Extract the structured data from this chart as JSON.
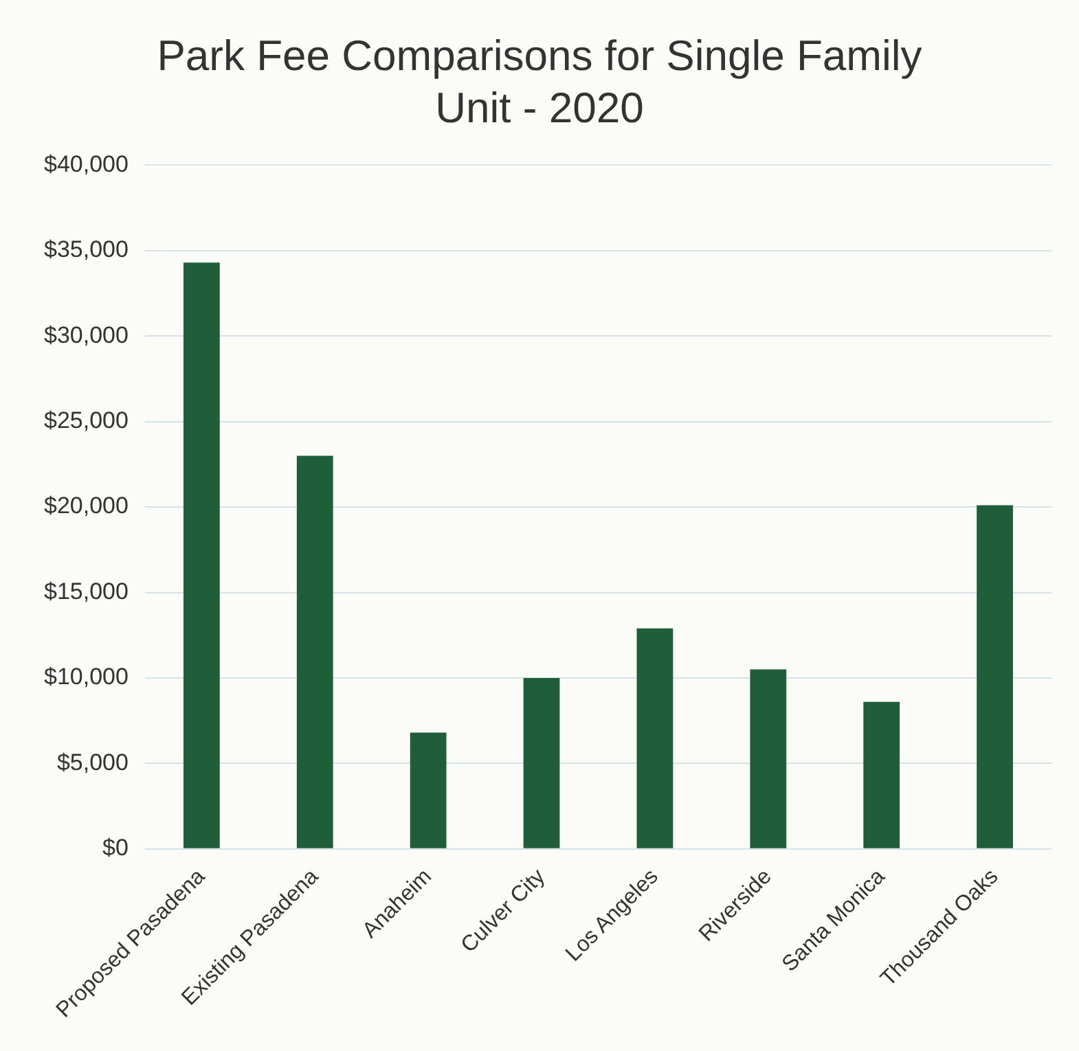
{
  "chart_data": {
    "type": "bar",
    "title": "Park Fee Comparisons for Single Family Unit - 2020",
    "categories": [
      "Proposed Pasadena",
      "Existing Pasadena",
      "Anaheim",
      "Culver City",
      "Los Angeles",
      "Riverside",
      "Santa Monica",
      "Thousand Oaks"
    ],
    "values": [
      34300,
      23000,
      6800,
      10000,
      12900,
      10500,
      8600,
      20100
    ],
    "color": "#1f5e38",
    "ylim": [
      0,
      40000
    ],
    "yticks": [
      {
        "value": 0,
        "label": "$0"
      },
      {
        "value": 5000,
        "label": "$5,000"
      },
      {
        "value": 10000,
        "label": "$10,000"
      },
      {
        "value": 15000,
        "label": "$15,000"
      },
      {
        "value": 20000,
        "label": "$20,000"
      },
      {
        "value": 25000,
        "label": "$25,000"
      },
      {
        "value": 30000,
        "label": "$30,000"
      },
      {
        "value": 35000,
        "label": "$35,000"
      },
      {
        "value": 40000,
        "label": "$40,000"
      }
    ],
    "grid": "y",
    "legend": false
  }
}
